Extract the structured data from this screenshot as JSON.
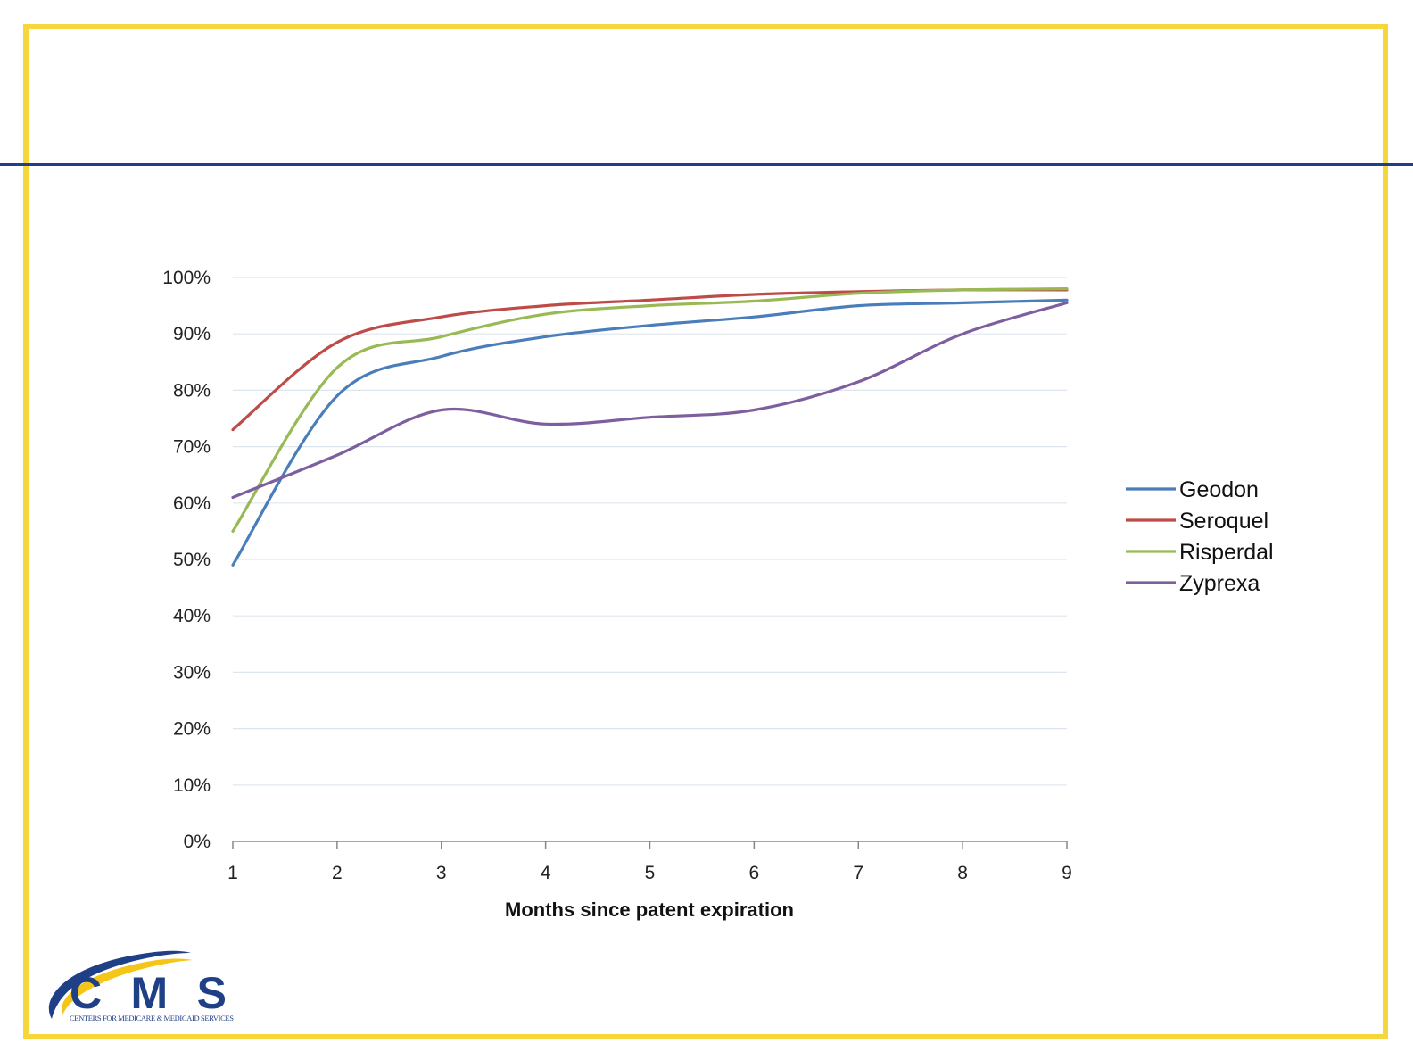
{
  "colors": {
    "frame": "#f5d63b",
    "rule": "#1f3f86",
    "gridline": "#dde6ee",
    "axis": "#888888",
    "logo_blue": "#1f3f86",
    "logo_yellow": "#f5c518"
  },
  "logo": {
    "wordmark": "CMS",
    "subtitle": "CENTERS FOR MEDICARE & MEDICAID SERVICES"
  },
  "chart_data": {
    "type": "line",
    "title": "",
    "xlabel": "Months since patent expiration",
    "ylabel": "",
    "x": [
      1,
      2,
      3,
      4,
      5,
      6,
      7,
      8,
      9
    ],
    "xlim": [
      1,
      9
    ],
    "ylim": [
      0,
      100
    ],
    "y_ticks": [
      "0%",
      "10%",
      "20%",
      "30%",
      "40%",
      "50%",
      "60%",
      "70%",
      "80%",
      "90%",
      "100%"
    ],
    "x_ticks": [
      "1",
      "2",
      "3",
      "4",
      "5",
      "6",
      "7",
      "8",
      "9"
    ],
    "grid": true,
    "legend_position": "right",
    "series": [
      {
        "name": "Geodon",
        "color": "#4a7ebb",
        "values": [
          49,
          79,
          86,
          89.5,
          91.5,
          93,
          95,
          95.5,
          96
        ]
      },
      {
        "name": "Seroquel",
        "color": "#be4b48",
        "values": [
          73,
          88.5,
          93,
          95,
          96,
          97,
          97.5,
          97.8,
          97.8
        ]
      },
      {
        "name": "Risperdal",
        "color": "#98b954",
        "values": [
          55,
          84,
          89.5,
          93.5,
          95,
          95.8,
          97.2,
          97.8,
          98
        ]
      },
      {
        "name": "Zyprexa",
        "color": "#7d5fa0",
        "values": [
          61,
          68.5,
          76.5,
          74,
          75.2,
          76.5,
          81.5,
          90,
          95.5
        ]
      }
    ]
  }
}
